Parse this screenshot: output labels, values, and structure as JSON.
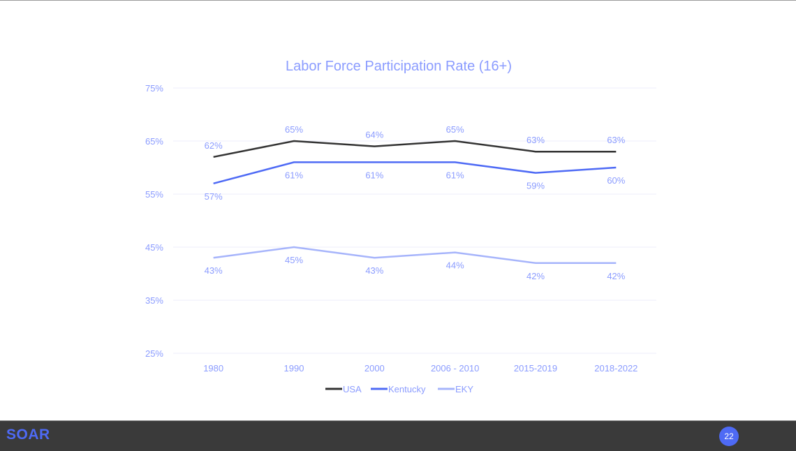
{
  "chart_data": {
    "type": "line",
    "title": "Labor Force Participation Rate (16+)",
    "categories": [
      "1980",
      "1990",
      "2000",
      "2006 - 2010",
      "2015-2019",
      "2018-2022"
    ],
    "series": [
      {
        "name": "USA",
        "values": [
          62,
          65,
          64,
          65,
          63,
          63
        ],
        "color": "#333333",
        "label_pos": "above"
      },
      {
        "name": "Kentucky",
        "values": [
          57,
          61,
          61,
          61,
          59,
          60
        ],
        "color": "#4e6af5",
        "label_pos": "below"
      },
      {
        "name": "EKY",
        "values": [
          43,
          45,
          43,
          44,
          42,
          42
        ],
        "color": "#a6b4fb",
        "label_pos": "below"
      }
    ],
    "ylim": [
      25,
      75
    ],
    "yticks": [
      25,
      35,
      45,
      55,
      65,
      75
    ],
    "ytick_format": "%",
    "grid": true,
    "legend": "bottom",
    "text_color": "#8b9cff"
  },
  "footer": {
    "logo": "SOAR",
    "page_number": "22",
    "background": "#3a3a3a",
    "accent": "#4e6af5"
  }
}
